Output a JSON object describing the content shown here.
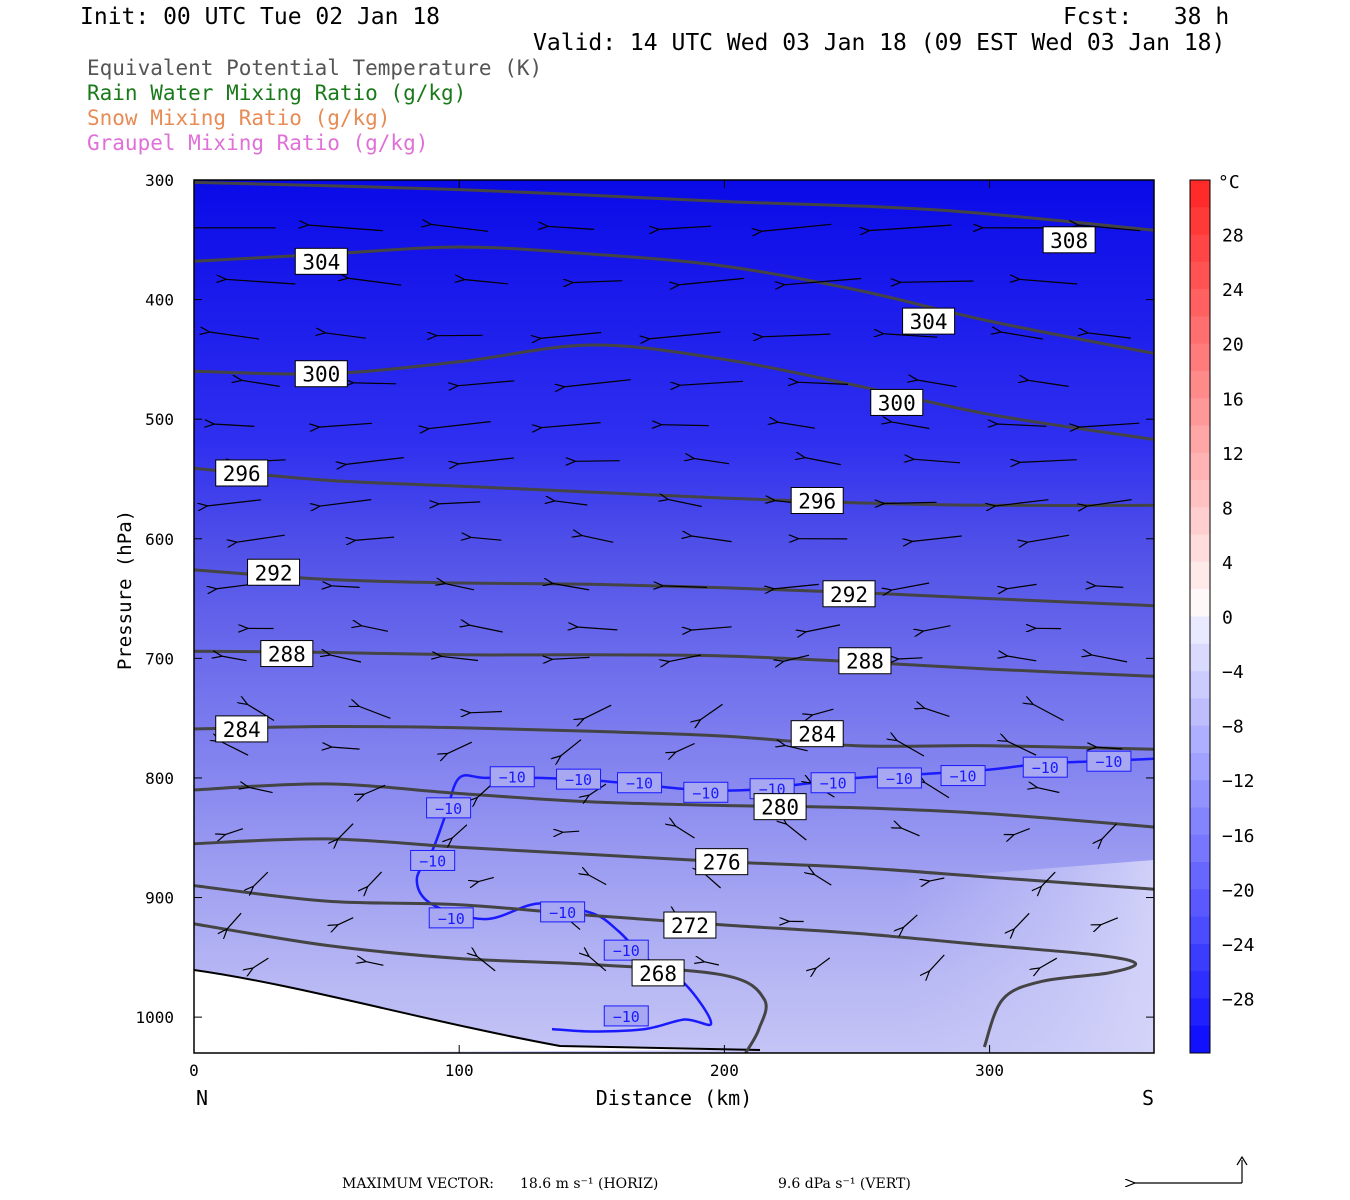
{
  "header": {
    "init": "Init: 00 UTC Tue 02 Jan 18",
    "fcst": "Fcst:   38 h",
    "valid": "Valid: 14 UTC Wed 03 Jan 18 (09 EST Wed 03 Jan 18)"
  },
  "legend": [
    {
      "text": "Equivalent Potential Temperature (K)",
      "color": "#555555"
    },
    {
      "text": "Rain Water Mixing Ratio (g/kg)",
      "color": "#1a7a1a"
    },
    {
      "text": "Snow Mixing Ratio (g/kg)",
      "color": "#e88b55"
    },
    {
      "text": "Graupel Mixing Ratio (g/kg)",
      "color": "#e070d8"
    }
  ],
  "chart_data": {
    "type": "cross-section",
    "xlabel": "Distance (km)",
    "ylabel": "Pressure (hPa)",
    "xlim": [
      0,
      362
    ],
    "ylim": [
      300,
      1030
    ],
    "x_ticks": [
      0,
      100,
      200,
      300
    ],
    "y_ticks": [
      300,
      400,
      500,
      600,
      700,
      800,
      900,
      1000
    ],
    "x_end_labels": {
      "left": "N",
      "right": "S"
    },
    "colorbar": {
      "unit": "°C",
      "range": [
        -32,
        32
      ],
      "tick_values": [
        28,
        24,
        20,
        16,
        12,
        8,
        4,
        0,
        -4,
        -8,
        -12,
        -16,
        -20,
        -24,
        -28
      ],
      "tick_labels": [
        "28",
        "24",
        "20",
        "16",
        "12",
        "8",
        "4",
        "0",
        "−4",
        "−8",
        "−12",
        "−16",
        "−20",
        "−24",
        "−28"
      ]
    },
    "theta_e_contours": [
      {
        "value": 308,
        "points": [
          [
            0,
            302
          ],
          [
            100,
            308
          ],
          [
            200,
            318
          ],
          [
            280,
            325
          ],
          [
            362,
            342
          ]
        ],
        "labels": [
          [
            330,
            350
          ]
        ]
      },
      {
        "value": 304,
        "points": [
          [
            0,
            368
          ],
          [
            50,
            362
          ],
          [
            100,
            356
          ],
          [
            150,
            362
          ],
          [
            200,
            372
          ],
          [
            250,
            392
          ],
          [
            300,
            418
          ],
          [
            362,
            445
          ]
        ],
        "labels": [
          [
            48,
            368
          ],
          [
            277,
            418
          ]
        ]
      },
      {
        "value": 300,
        "points": [
          [
            0,
            460
          ],
          [
            50,
            462
          ],
          [
            100,
            452
          ],
          [
            150,
            438
          ],
          [
            200,
            450
          ],
          [
            250,
            472
          ],
          [
            300,
            496
          ],
          [
            362,
            517
          ]
        ],
        "labels": [
          [
            48,
            462
          ],
          [
            265,
            486
          ]
        ]
      },
      {
        "value": 296,
        "points": [
          [
            0,
            541
          ],
          [
            50,
            551
          ],
          [
            100,
            556
          ],
          [
            150,
            561
          ],
          [
            200,
            566
          ],
          [
            250,
            570
          ],
          [
            300,
            572
          ],
          [
            362,
            572
          ]
        ],
        "labels": [
          [
            18,
            545
          ],
          [
            235,
            568
          ]
        ]
      },
      {
        "value": 292,
        "points": [
          [
            0,
            626
          ],
          [
            50,
            634
          ],
          [
            100,
            637
          ],
          [
            150,
            638
          ],
          [
            200,
            641
          ],
          [
            250,
            645
          ],
          [
            300,
            650
          ],
          [
            362,
            656
          ]
        ],
        "labels": [
          [
            30,
            628
          ],
          [
            247,
            646
          ]
        ]
      },
      {
        "value": 288,
        "points": [
          [
            0,
            694
          ],
          [
            50,
            695
          ],
          [
            100,
            697
          ],
          [
            150,
            697
          ],
          [
            200,
            698
          ],
          [
            250,
            703
          ],
          [
            300,
            709
          ],
          [
            362,
            715
          ]
        ],
        "labels": [
          [
            35,
            696
          ],
          [
            253,
            702
          ]
        ]
      },
      {
        "value": 284,
        "points": [
          [
            0,
            759
          ],
          [
            50,
            757
          ],
          [
            100,
            758
          ],
          [
            150,
            761
          ],
          [
            200,
            765
          ],
          [
            250,
            773
          ],
          [
            300,
            773
          ],
          [
            362,
            776
          ]
        ],
        "labels": [
          [
            18,
            759
          ],
          [
            235,
            763
          ]
        ]
      },
      {
        "value": 280,
        "points": [
          [
            0,
            810
          ],
          [
            50,
            805
          ],
          [
            100,
            813
          ],
          [
            150,
            820
          ],
          [
            200,
            823
          ],
          [
            250,
            825
          ],
          [
            300,
            830
          ],
          [
            362,
            841
          ]
        ],
        "labels": [
          [
            221,
            824
          ]
        ]
      },
      {
        "value": 276,
        "points": [
          [
            0,
            855
          ],
          [
            50,
            851
          ],
          [
            100,
            858
          ],
          [
            150,
            864
          ],
          [
            200,
            870
          ],
          [
            250,
            875
          ],
          [
            300,
            883
          ],
          [
            362,
            893
          ]
        ],
        "labels": [
          [
            199,
            870
          ]
        ]
      },
      {
        "value": 272,
        "points": [
          [
            0,
            890
          ],
          [
            50,
            903
          ],
          [
            100,
            906
          ],
          [
            150,
            915
          ],
          [
            200,
            923
          ],
          [
            250,
            930
          ],
          [
            300,
            940
          ],
          [
            340,
            948
          ],
          [
            355,
            955
          ],
          [
            345,
            963
          ],
          [
            320,
            970
          ],
          [
            305,
            985
          ],
          [
            298,
            1025
          ]
        ],
        "labels": [
          [
            187,
            923
          ]
        ]
      },
      {
        "value": 268,
        "points": [
          [
            0,
            922
          ],
          [
            50,
            940
          ],
          [
            100,
            951
          ],
          [
            150,
            956
          ],
          [
            200,
            965
          ],
          [
            215,
            985
          ],
          [
            213,
            1010
          ],
          [
            208,
            1030
          ]
        ],
        "labels": [
          [
            175,
            963
          ]
        ]
      }
    ],
    "temperature_contours": [
      {
        "value": -10,
        "color": "#1a1aff",
        "points": [
          [
            362,
            784
          ],
          [
            340,
            786
          ],
          [
            320,
            788
          ],
          [
            300,
            793
          ],
          [
            280,
            796
          ],
          [
            250,
            800
          ],
          [
            230,
            805
          ],
          [
            210,
            810
          ],
          [
            190,
            810
          ],
          [
            170,
            806
          ],
          [
            150,
            802
          ],
          [
            130,
            800
          ],
          [
            110,
            800
          ],
          [
            100,
            800
          ],
          [
            95,
            830
          ],
          [
            90,
            860
          ],
          [
            84,
            885
          ],
          [
            90,
            906
          ],
          [
            110,
            918
          ],
          [
            130,
            905
          ],
          [
            150,
            913
          ],
          [
            160,
            928
          ],
          [
            170,
            950
          ],
          [
            185,
            972
          ],
          [
            195,
            1005
          ],
          [
            185,
            1002
          ],
          [
            170,
            1010
          ],
          [
            150,
            1012
          ],
          [
            135,
            1010
          ]
        ],
        "labels": [
          [
            120,
            799
          ],
          [
            145,
            801
          ],
          [
            168,
            804
          ],
          [
            193,
            812
          ],
          [
            218,
            809
          ],
          [
            241,
            804
          ],
          [
            266,
            800
          ],
          [
            290,
            798
          ],
          [
            321,
            791
          ],
          [
            345,
            786
          ],
          [
            96,
            825
          ],
          [
            90,
            869
          ],
          [
            97,
            917
          ],
          [
            139,
            912
          ],
          [
            163,
            944
          ],
          [
            163,
            999
          ]
        ]
      }
    ],
    "wind_vectors_note": "North-south wind arrows pointing mostly toward the north (left); maximum vectors shown in footer",
    "max_vector": {
      "horiz": "18.6 m s⁻¹ (HORIZ)",
      "vert": "9.6 dPa s⁻¹ (VERT)"
    }
  },
  "footer": {
    "label": "MAXIMUM VECTOR:",
    "horiz": "18.6 m s⁻¹ (HORIZ)",
    "vert": "9.6 dPa s⁻¹ (VERT)"
  }
}
